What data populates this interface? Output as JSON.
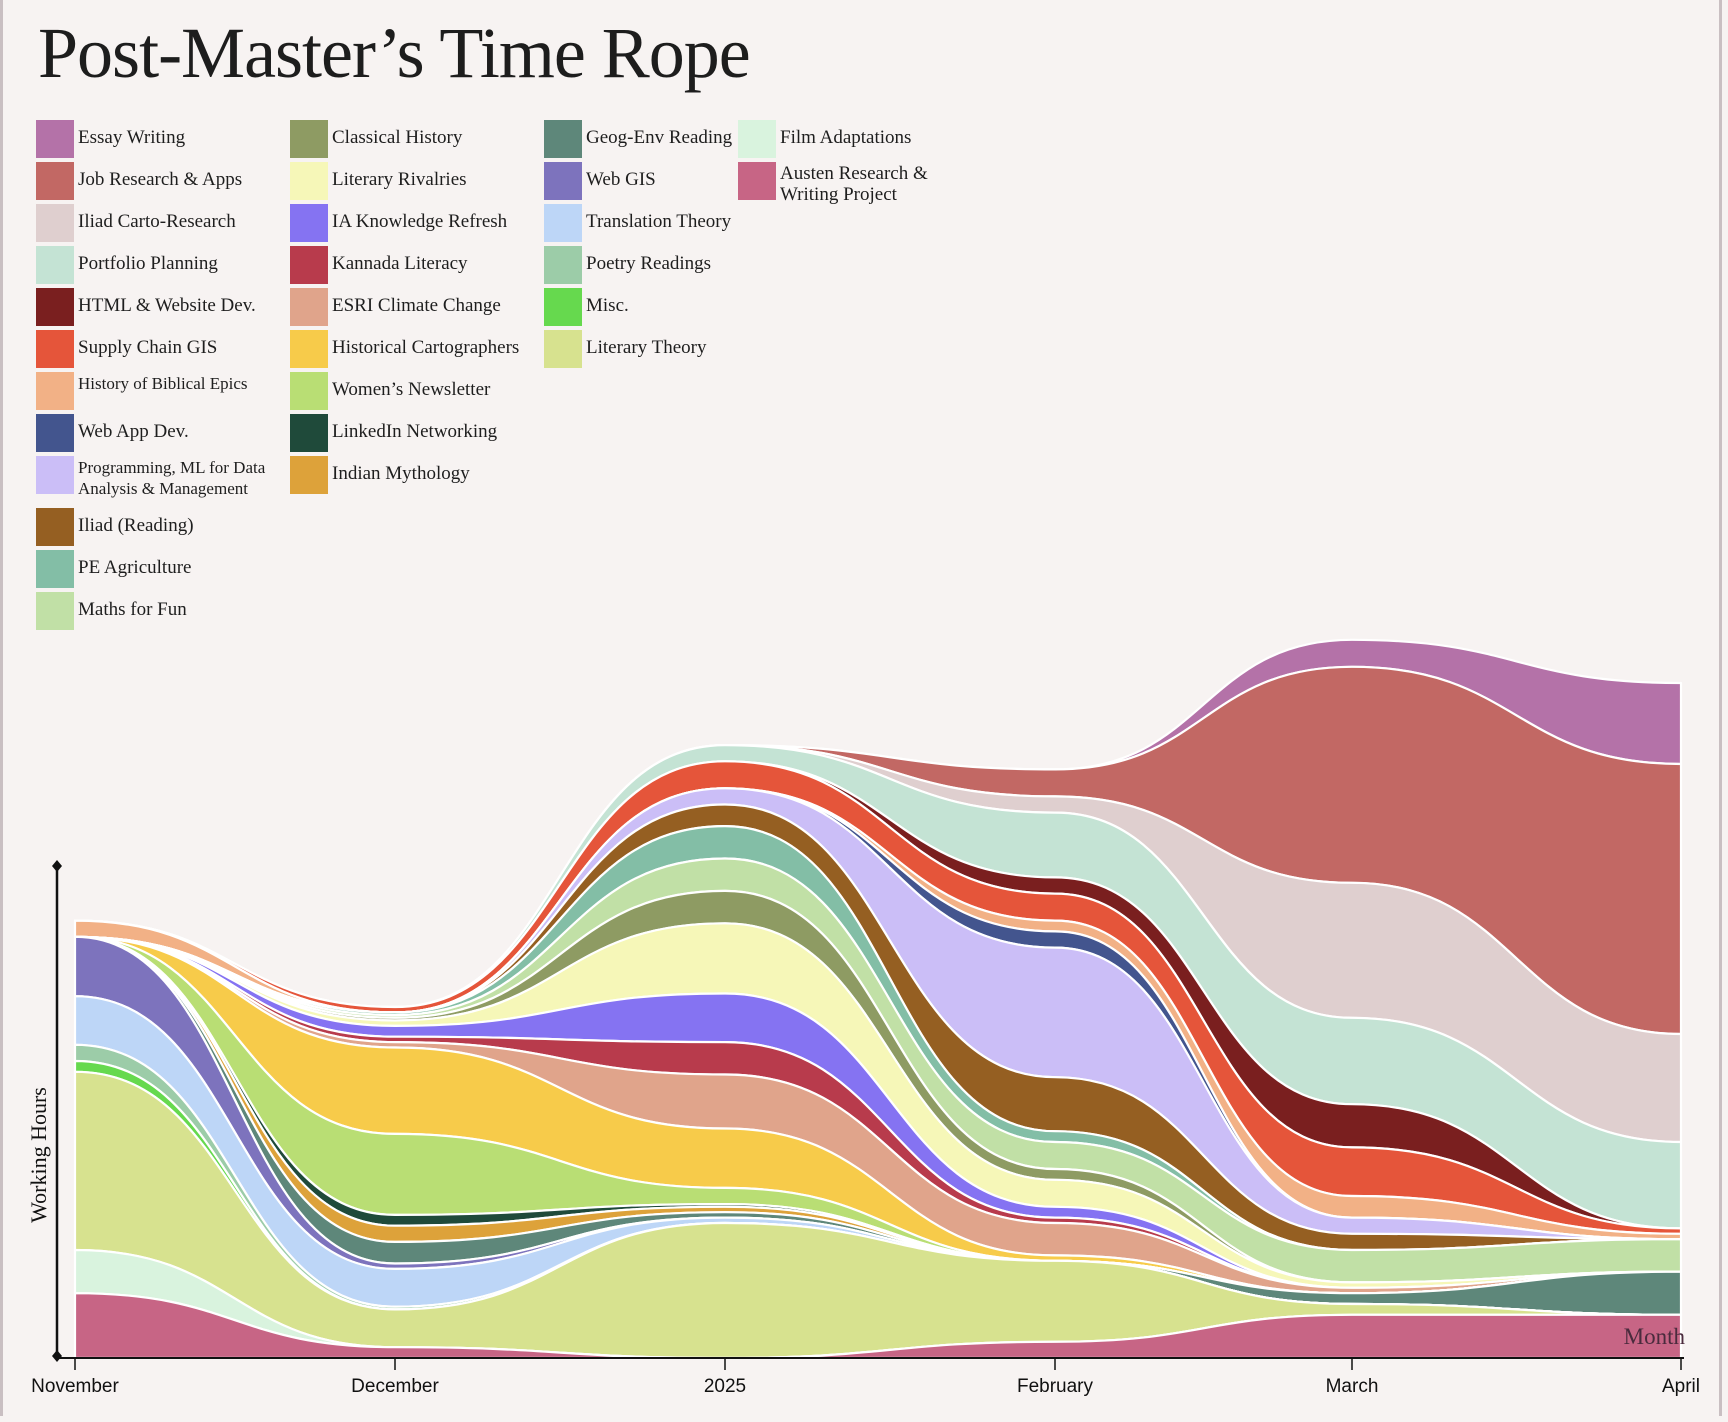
{
  "chart_data": {
    "type": "area",
    "title": "Post-Master’s Time Rope",
    "xlabel": "Month",
    "ylabel": "Working Hours",
    "x_ticks": [
      "November",
      "December",
      "2025",
      "February",
      "March",
      "April"
    ],
    "x": [
      "2024-11-01",
      "2024-12-01",
      "2025-01-01",
      "2025-02-01",
      "2025-03-01",
      "2025-04-01"
    ],
    "grid": false,
    "legend_position": "top-left",
    "series": [
      {
        "name": "Essay Writing",
        "color": "#b472a8",
        "values": [
          0,
          0,
          0,
          0,
          5,
          15
        ]
      },
      {
        "name": "Job Research & Apps",
        "color": "#c26864",
        "values": [
          0,
          0,
          0,
          5,
          40,
          50
        ]
      },
      {
        "name": "Iliad Carto-Research",
        "color": "#dfcfcf",
        "values": [
          0,
          0,
          0,
          3,
          25,
          20
        ]
      },
      {
        "name": "Portfolio Planning",
        "color": "#c4e3d4",
        "values": [
          0,
          0,
          3,
          12,
          16,
          16
        ]
      },
      {
        "name": "HTML & Website Dev.",
        "color": "#7a1f1f",
        "values": [
          0,
          0,
          0,
          3,
          8,
          0
        ]
      },
      {
        "name": "Supply Chain GIS",
        "color": "#e5553a",
        "values": [
          0,
          1,
          5,
          5,
          9,
          1
        ]
      },
      {
        "name": "History of Biblical Epics",
        "color": "#f2b186",
        "values": [
          3,
          0,
          0,
          2,
          4,
          1
        ]
      },
      {
        "name": "Web App Dev.",
        "color": "#43558e",
        "values": [
          0,
          0,
          0,
          3,
          0,
          0
        ]
      },
      {
        "name": "Programming, ML for Data Analysis & Management",
        "color": "#cbbef7",
        "values": [
          0,
          0,
          3,
          24,
          3,
          0
        ]
      },
      {
        "name": "Iliad (Reading)",
        "color": "#955f22",
        "values": [
          0,
          0,
          4,
          10,
          3,
          0
        ]
      },
      {
        "name": "PE Agriculture",
        "color": "#83bea6",
        "values": [
          0,
          0.5,
          6,
          2,
          0,
          0
        ]
      },
      {
        "name": "Maths for Fun",
        "color": "#c1e0a6",
        "values": [
          0,
          0.5,
          6,
          5,
          6,
          6
        ]
      },
      {
        "name": "Classical History",
        "color": "#8e9b63",
        "values": [
          0,
          0.5,
          6,
          2,
          0,
          0
        ]
      },
      {
        "name": "Literary Rivalries",
        "color": "#f6f7b8",
        "values": [
          0,
          1,
          13,
          5,
          1,
          0
        ]
      },
      {
        "name": "IA Knowledge Refresh",
        "color": "#8573f2",
        "values": [
          0,
          2,
          9,
          2,
          0,
          0
        ]
      },
      {
        "name": "Kannada Literacy",
        "color": "#b83b4c",
        "values": [
          0,
          1,
          6,
          1,
          0,
          0
        ]
      },
      {
        "name": "ESRI Climate Change",
        "color": "#e0a48b",
        "values": [
          0,
          1,
          10,
          6,
          1,
          0
        ]
      },
      {
        "name": "Historical Cartographers",
        "color": "#f7cb4a",
        "values": [
          0,
          16,
          11,
          1,
          0,
          0
        ]
      },
      {
        "name": "Women’s Newsletter",
        "color": "#b9de74",
        "values": [
          0,
          15,
          3,
          0,
          0,
          0
        ]
      },
      {
        "name": "LinkedIn Networking",
        "color": "#1f4a3a",
        "values": [
          0,
          2,
          0.5,
          0,
          0,
          0
        ]
      },
      {
        "name": "Indian Mythology",
        "color": "#dda23a",
        "values": [
          0,
          3,
          1,
          0,
          0,
          0
        ]
      },
      {
        "name": "Geog-Env Reading",
        "color": "#5e877a",
        "values": [
          0,
          4,
          1,
          0,
          2,
          8
        ]
      },
      {
        "name": "Web GIS",
        "color": "#7d73bd",
        "values": [
          11,
          1,
          0,
          0,
          0,
          0
        ]
      },
      {
        "name": "Translation Theory",
        "color": "#bdd6f7",
        "values": [
          9,
          7,
          1,
          0,
          0,
          0
        ]
      },
      {
        "name": "Poetry Readings",
        "color": "#9ccca8",
        "values": [
          3,
          0.5,
          0,
          0,
          0,
          0
        ]
      },
      {
        "name": "Misc.",
        "color": "#66d94e",
        "values": [
          2,
          0,
          0,
          0,
          0,
          0
        ]
      },
      {
        "name": "Literary Theory",
        "color": "#d7e28f",
        "values": [
          33,
          7,
          25,
          15,
          2,
          0
        ]
      },
      {
        "name": "Film Adaptations",
        "color": "#d9f3de",
        "values": [
          8,
          0,
          0,
          0,
          0,
          0
        ]
      },
      {
        "name": "Austen Research & Writing Project",
        "color": "#c76585",
        "values": [
          12,
          2,
          0,
          3,
          8,
          8
        ]
      }
    ]
  }
}
